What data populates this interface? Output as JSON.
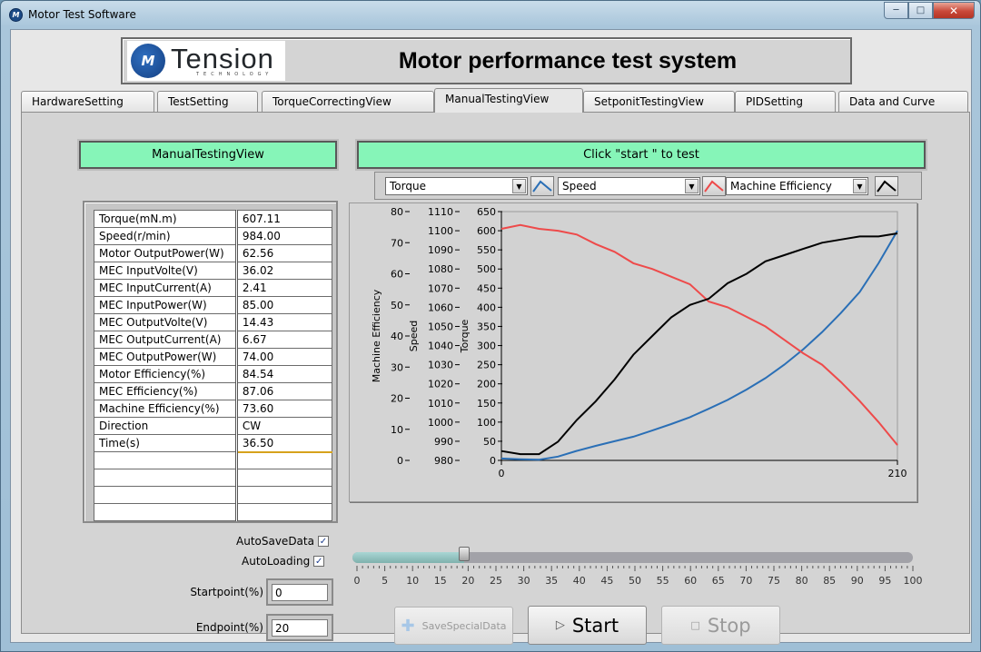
{
  "window": {
    "title": "Motor Test Software"
  },
  "header": {
    "logo_name": "Tension",
    "logo_sub": "TECHNOLOGY",
    "title": "Motor performance test system"
  },
  "tabs": [
    {
      "label": "HardwareSetting"
    },
    {
      "label": "TestSetting"
    },
    {
      "label": "TorqueCorrectingView"
    },
    {
      "label": "ManualTestingView"
    },
    {
      "label": "SetponitTestingView"
    },
    {
      "label": "PIDSetting"
    },
    {
      "label": "Data and Curve"
    }
  ],
  "active_tab": "ManualTestingView",
  "left_panel": {
    "title": "ManualTestingView",
    "rows": [
      {
        "label": "Torque(mN.m)",
        "value": "607.11"
      },
      {
        "label": "Speed(r/min)",
        "value": "984.00"
      },
      {
        "label": "Motor OutputPower(W)",
        "value": "62.56"
      },
      {
        "label": "MEC InputVolte(V)",
        "value": "36.02"
      },
      {
        "label": "MEC InputCurrent(A)",
        "value": "2.41"
      },
      {
        "label": "MEC InputPower(W)",
        "value": "85.00"
      },
      {
        "label": "MEC OutputVolte(V)",
        "value": "14.43"
      },
      {
        "label": "MEC OutputCurrent(A)",
        "value": "6.67"
      },
      {
        "label": "MEC OutputPower(W)",
        "value": "74.00"
      },
      {
        "label": "Motor Efficiency(%)",
        "value": "84.54"
      },
      {
        "label": "MEC Efficiency(%)",
        "value": "87.06"
      },
      {
        "label": "Machine Efficiency(%)",
        "value": "73.60"
      },
      {
        "label": "Direction",
        "value": "CW"
      },
      {
        "label": "Time(s)",
        "value": "36.50"
      }
    ],
    "auto_save_label": "AutoSaveData",
    "auto_save_checked": true,
    "auto_loading_label": "AutoLoading",
    "auto_loading_checked": true,
    "startpoint_label": "Startpoint(%)",
    "startpoint_value": "0",
    "endpoint_label": "Endpoint(%)",
    "endpoint_value": "20"
  },
  "status": {
    "message": "Click \"start \" to test"
  },
  "selectors": [
    {
      "value": "Torque",
      "color": "#2a6fb6"
    },
    {
      "value": "Speed",
      "color": "#ee4a4a"
    },
    {
      "value": "Machine Efficiency",
      "color": "#000000"
    }
  ],
  "chart_data": {
    "type": "line",
    "x": [
      0,
      10,
      20,
      30,
      40,
      50,
      60,
      70,
      80,
      90,
      100,
      110,
      120,
      130,
      140,
      150,
      160,
      170,
      180,
      190,
      200,
      210
    ],
    "xlim": [
      0,
      210
    ],
    "x_ticks": [
      "0",
      "210"
    ],
    "axes": [
      {
        "label": "Machine Efficiency",
        "ticks": [
          "0",
          "10",
          "20",
          "30",
          "40",
          "50",
          "60",
          "70",
          "80"
        ],
        "ylim": [
          0,
          80
        ]
      },
      {
        "label": "Speed",
        "ticks": [
          "980",
          "990",
          "1000",
          "1010",
          "1020",
          "1030",
          "1040",
          "1050",
          "1060",
          "1070",
          "1080",
          "1090",
          "1100",
          "1110"
        ],
        "ylim": [
          980,
          1110
        ]
      },
      {
        "label": "Torque",
        "ticks": [
          "0",
          "50",
          "100",
          "150",
          "200",
          "250",
          "300",
          "350",
          "400",
          "450",
          "500",
          "550",
          "600",
          "650"
        ],
        "ylim": [
          0,
          650
        ]
      }
    ],
    "series": [
      {
        "axis": 2,
        "color": "#2a6fb6",
        "values": [
          5,
          3,
          2,
          10,
          25,
          38,
          50,
          62,
          78,
          95,
          113,
          135,
          158,
          185,
          215,
          250,
          290,
          335,
          385,
          440,
          515,
          600
        ]
      },
      {
        "axis": 1,
        "color": "#ee4a4a",
        "values": [
          1101,
          1103,
          1101,
          1100,
          1098,
          1093,
          1089,
          1083,
          1080,
          1076,
          1072,
          1063,
          1060,
          1055,
          1050,
          1043,
          1036,
          1030,
          1021,
          1011,
          1000,
          988
        ]
      },
      {
        "axis": 0,
        "color": "#000000",
        "values": [
          3,
          2,
          2,
          6,
          13,
          19,
          26,
          34,
          40,
          46,
          50,
          52,
          57,
          60,
          64,
          66,
          68,
          70,
          71,
          72,
          72,
          73
        ]
      }
    ]
  },
  "slider": {
    "value": 20,
    "scale": [
      "0",
      "5",
      "10",
      "15",
      "20",
      "25",
      "30",
      "35",
      "40",
      "45",
      "50",
      "55",
      "60",
      "65",
      "70",
      "75",
      "80",
      "85",
      "90",
      "95",
      "100"
    ]
  },
  "buttons": {
    "save_special": "SaveSpecialData",
    "start": "Start",
    "stop": "Stop"
  }
}
